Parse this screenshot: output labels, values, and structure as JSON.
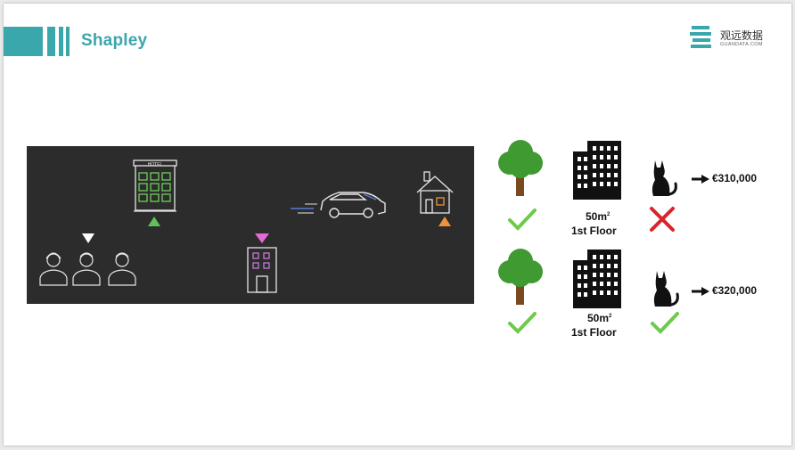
{
  "slide": {
    "title": "Shapley",
    "accent_color": "#3aa7ad"
  },
  "logo": {
    "name": "观远数据",
    "domain": "GUANDATA.COM",
    "icon": "stacked-bars-logo-icon"
  },
  "scene": {
    "hotel_sign": "HOTEL",
    "icons": [
      "people-icon",
      "hotel-icon",
      "car-icon",
      "house-icon",
      "building-icon"
    ],
    "marker_colors": {
      "white": "#ffffff",
      "green": "#5ec15a",
      "magenta": "#e36ad6",
      "orange": "#f0923b"
    }
  },
  "rows": [
    {
      "size": "50m",
      "size_sup": "2",
      "floor": "1st Floor",
      "park": true,
      "cat_allowed": false,
      "price": "€310,000"
    },
    {
      "size": "50m",
      "size_sup": "2",
      "floor": "1st Floor",
      "park": true,
      "cat_allowed": true,
      "price": "€320,000"
    }
  ],
  "colors": {
    "check": "#6dca4b",
    "cross": "#d9242b",
    "tree": "#3e9a31",
    "trunk": "#7a4a1e"
  }
}
